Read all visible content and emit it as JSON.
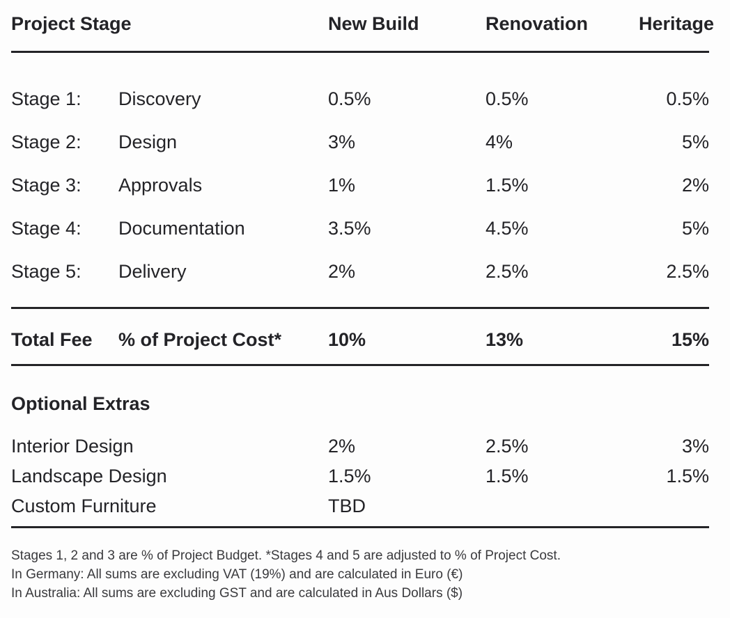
{
  "colors": {
    "background": "#fdfdfd",
    "text": "#232327",
    "rule": "#242427",
    "footnote_text": "#3a3a3d"
  },
  "table": {
    "columns": {
      "project_stage": "Project Stage",
      "new_build": "New Build",
      "renovation": "Renovation",
      "heritage": "Heritage"
    },
    "stages": [
      {
        "label": "Stage 1:",
        "name": "Discovery",
        "new_build": "0.5%",
        "renovation": "0.5%",
        "heritage": "0.5%"
      },
      {
        "label": "Stage 2:",
        "name": "Design",
        "new_build": "3%",
        "renovation": "4%",
        "heritage": "5%"
      },
      {
        "label": "Stage 3:",
        "name": "Approvals",
        "new_build": "1%",
        "renovation": "1.5%",
        "heritage": "2%"
      },
      {
        "label": "Stage 4:",
        "name": "Documentation",
        "new_build": "3.5%",
        "renovation": "4.5%",
        "heritage": "5%"
      },
      {
        "label": "Stage 5:",
        "name": "Delivery",
        "new_build": "2%",
        "renovation": "2.5%",
        "heritage": "2.5%"
      }
    ],
    "total": {
      "label": "Total Fee",
      "name": "% of Project Cost*",
      "new_build": "10%",
      "renovation": "13%",
      "heritage": "15%"
    },
    "extras": {
      "title": "Optional Extras",
      "rows": [
        {
          "name": "Interior Design",
          "new_build": "2%",
          "renovation": "2.5%",
          "heritage": "3%"
        },
        {
          "name": "Landscape Design",
          "new_build": "1.5%",
          "renovation": "1.5%",
          "heritage": "1.5%"
        },
        {
          "name": "Custom Furniture",
          "new_build": "TBD",
          "renovation": "",
          "heritage": ""
        }
      ]
    },
    "footnotes": [
      "Stages 1, 2 and 3 are % of Project Budget. *Stages 4 and 5 are adjusted to % of Project Cost.",
      "In Germany: All sums are excluding VAT (19%) and are calculated in Euro (€)",
      "In Australia: All sums are excluding GST and are calculated in Aus Dollars ($)"
    ]
  }
}
